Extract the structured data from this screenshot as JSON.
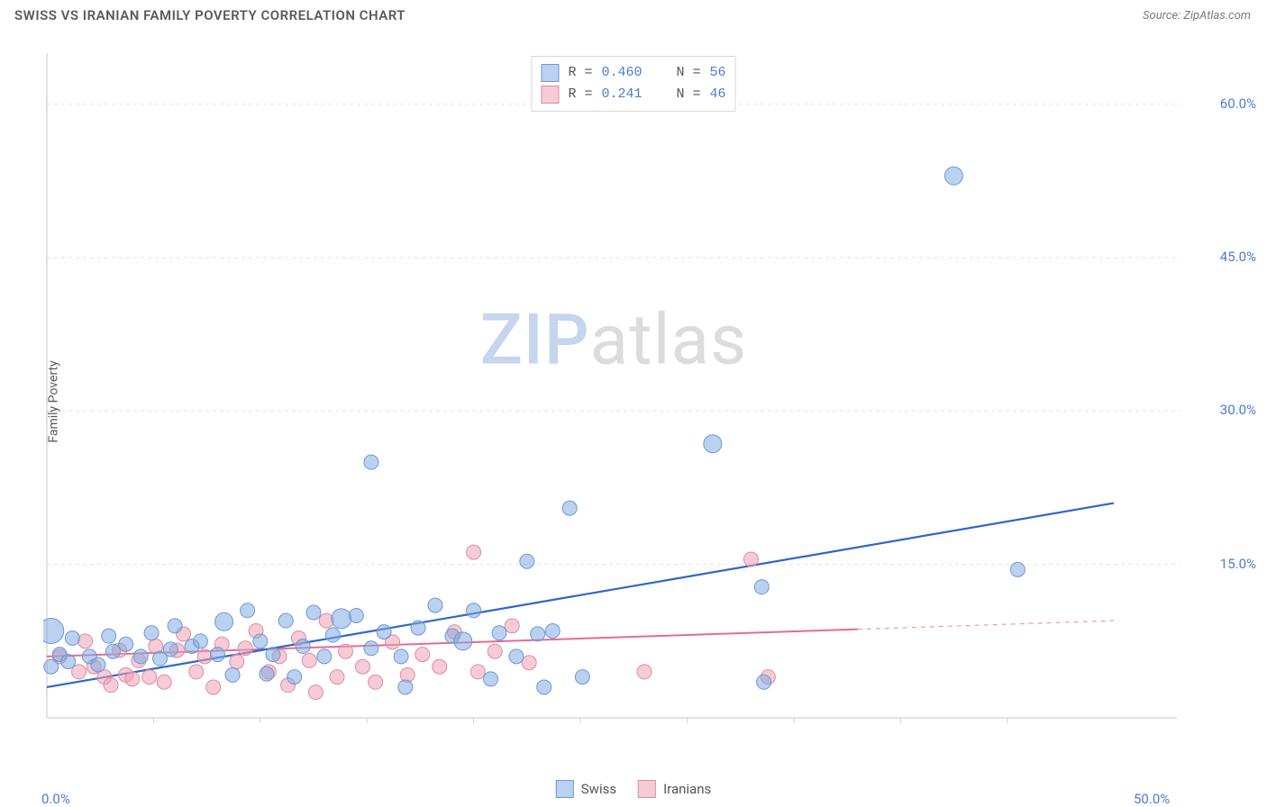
{
  "header": {
    "title": "SWISS VS IRANIAN FAMILY POVERTY CORRELATION CHART",
    "source_label": "Source: ZipAtlas.com"
  },
  "watermark": {
    "part1": "ZIP",
    "part2": "atlas"
  },
  "ylabel": "Family Poverty",
  "stat_legend": {
    "rows": [
      {
        "series": "swiss",
        "r_label": "R =",
        "r_value": "0.460",
        "n_label": "N =",
        "n_value": "56"
      },
      {
        "series": "iranians",
        "r_label": "R =",
        "r_value": "0.241",
        "n_label": "N =",
        "n_value": "46"
      }
    ]
  },
  "bottom_legend": {
    "items": [
      {
        "series": "swiss",
        "label": "Swiss"
      },
      {
        "series": "iranians",
        "label": "Iranians"
      }
    ]
  },
  "chart": {
    "type": "scatter",
    "background_color": "#ffffff",
    "grid_color": "#e4e4e4",
    "grid_dash": "4,4",
    "axis_color": "#d0d0d0",
    "xlim": [
      0,
      50
    ],
    "ylim": [
      0,
      65
    ],
    "x_ticks": [
      {
        "value": 0,
        "label": "0.0%"
      },
      {
        "value": 50,
        "label": "50.0%"
      }
    ],
    "y_ticks": [
      {
        "value": 15,
        "label": "15.0%"
      },
      {
        "value": 30,
        "label": "30.0%"
      },
      {
        "value": 45,
        "label": "45.0%"
      },
      {
        "value": 60,
        "label": "60.0%"
      }
    ],
    "minor_x_ticks": [
      5,
      10,
      15,
      20,
      25,
      30,
      35,
      40,
      45
    ],
    "series": {
      "swiss": {
        "color_fill": "rgba(132,172,225,0.55)",
        "color_stroke": "#6a9ad6",
        "line_color": "#2d67c9",
        "line_width": 2.2,
        "marker_radius": 8,
        "regression": {
          "x1": 0,
          "y1": 3.0,
          "x2": 50,
          "y2": 21.0,
          "solid_until_x": 50
        }
      },
      "iranians": {
        "color_fill": "rgba(236,160,180,0.55)",
        "color_stroke": "#e28aa2",
        "line_color": "#e76b8f",
        "line_width": 2.0,
        "marker_radius": 8,
        "regression": {
          "x1": 0,
          "y1": 6.0,
          "x2": 50,
          "y2": 9.5,
          "solid_until_x": 38
        }
      }
    },
    "points": {
      "swiss": [
        {
          "x": 0.2,
          "y": 8.5,
          "r": 14
        },
        {
          "x": 0.2,
          "y": 5.0
        },
        {
          "x": 0.6,
          "y": 6.2
        },
        {
          "x": 1.0,
          "y": 5.5
        },
        {
          "x": 1.2,
          "y": 7.8
        },
        {
          "x": 2.0,
          "y": 6.0
        },
        {
          "x": 2.4,
          "y": 5.2
        },
        {
          "x": 2.9,
          "y": 8.0
        },
        {
          "x": 3.1,
          "y": 6.5
        },
        {
          "x": 3.7,
          "y": 7.2
        },
        {
          "x": 4.4,
          "y": 6.0
        },
        {
          "x": 4.9,
          "y": 8.3
        },
        {
          "x": 5.3,
          "y": 5.8
        },
        {
          "x": 5.8,
          "y": 6.7
        },
        {
          "x": 6.0,
          "y": 9.0
        },
        {
          "x": 6.8,
          "y": 7.0
        },
        {
          "x": 7.2,
          "y": 7.5
        },
        {
          "x": 8.0,
          "y": 6.2
        },
        {
          "x": 8.3,
          "y": 9.4,
          "r": 10
        },
        {
          "x": 8.7,
          "y": 4.2
        },
        {
          "x": 9.4,
          "y": 10.5
        },
        {
          "x": 10.0,
          "y": 7.5
        },
        {
          "x": 10.3,
          "y": 4.3
        },
        {
          "x": 10.6,
          "y": 6.2
        },
        {
          "x": 11.2,
          "y": 9.5
        },
        {
          "x": 11.6,
          "y": 4.0
        },
        {
          "x": 12.0,
          "y": 7.0
        },
        {
          "x": 12.5,
          "y": 10.3
        },
        {
          "x": 13.0,
          "y": 6.0
        },
        {
          "x": 13.4,
          "y": 8.1
        },
        {
          "x": 13.8,
          "y": 9.7,
          "r": 11
        },
        {
          "x": 14.5,
          "y": 10.0
        },
        {
          "x": 15.2,
          "y": 25.0
        },
        {
          "x": 15.2,
          "y": 6.8
        },
        {
          "x": 15.8,
          "y": 8.4
        },
        {
          "x": 16.6,
          "y": 6.0
        },
        {
          "x": 16.8,
          "y": 3.0
        },
        {
          "x": 17.4,
          "y": 8.8
        },
        {
          "x": 18.2,
          "y": 11.0
        },
        {
          "x": 19.0,
          "y": 8.0
        },
        {
          "x": 19.5,
          "y": 7.5,
          "r": 10
        },
        {
          "x": 20.0,
          "y": 10.5
        },
        {
          "x": 20.8,
          "y": 3.8
        },
        {
          "x": 21.2,
          "y": 8.3
        },
        {
          "x": 22.0,
          "y": 6.0
        },
        {
          "x": 22.5,
          "y": 15.3
        },
        {
          "x": 23.0,
          "y": 8.2
        },
        {
          "x": 23.3,
          "y": 3.0
        },
        {
          "x": 23.7,
          "y": 8.5
        },
        {
          "x": 24.5,
          "y": 20.5
        },
        {
          "x": 25.1,
          "y": 4.0
        },
        {
          "x": 31.2,
          "y": 26.8,
          "r": 10
        },
        {
          "x": 33.5,
          "y": 12.8
        },
        {
          "x": 33.6,
          "y": 3.5
        },
        {
          "x": 42.5,
          "y": 53.0,
          "r": 10
        },
        {
          "x": 45.5,
          "y": 14.5
        }
      ],
      "iranians": [
        {
          "x": 0.6,
          "y": 6.0
        },
        {
          "x": 1.5,
          "y": 4.5
        },
        {
          "x": 1.8,
          "y": 7.5
        },
        {
          "x": 2.2,
          "y": 5.0
        },
        {
          "x": 2.7,
          "y": 4.0
        },
        {
          "x": 3.0,
          "y": 3.2
        },
        {
          "x": 3.4,
          "y": 6.6
        },
        {
          "x": 3.7,
          "y": 4.2
        },
        {
          "x": 4.0,
          "y": 3.8
        },
        {
          "x": 4.3,
          "y": 5.6
        },
        {
          "x": 4.8,
          "y": 4.0
        },
        {
          "x": 5.1,
          "y": 7.0
        },
        {
          "x": 5.5,
          "y": 3.5
        },
        {
          "x": 6.1,
          "y": 6.6
        },
        {
          "x": 6.4,
          "y": 8.2
        },
        {
          "x": 7.0,
          "y": 4.5
        },
        {
          "x": 7.4,
          "y": 6.0
        },
        {
          "x": 7.8,
          "y": 3.0
        },
        {
          "x": 8.2,
          "y": 7.2
        },
        {
          "x": 8.9,
          "y": 5.5
        },
        {
          "x": 9.3,
          "y": 6.8
        },
        {
          "x": 9.8,
          "y": 8.5
        },
        {
          "x": 10.4,
          "y": 4.5
        },
        {
          "x": 10.9,
          "y": 6.0
        },
        {
          "x": 11.3,
          "y": 3.2
        },
        {
          "x": 11.8,
          "y": 7.8
        },
        {
          "x": 12.3,
          "y": 5.6
        },
        {
          "x": 12.6,
          "y": 2.5
        },
        {
          "x": 13.1,
          "y": 9.5
        },
        {
          "x": 13.6,
          "y": 4.0
        },
        {
          "x": 14.0,
          "y": 6.5
        },
        {
          "x": 14.8,
          "y": 5.0
        },
        {
          "x": 15.4,
          "y": 3.5
        },
        {
          "x": 16.2,
          "y": 7.4
        },
        {
          "x": 16.9,
          "y": 4.2
        },
        {
          "x": 17.6,
          "y": 6.2
        },
        {
          "x": 18.4,
          "y": 5.0
        },
        {
          "x": 19.1,
          "y": 8.4
        },
        {
          "x": 20.0,
          "y": 16.2
        },
        {
          "x": 20.2,
          "y": 4.5
        },
        {
          "x": 21.0,
          "y": 6.5
        },
        {
          "x": 21.8,
          "y": 9.0
        },
        {
          "x": 22.6,
          "y": 5.4
        },
        {
          "x": 28.0,
          "y": 4.5
        },
        {
          "x": 33.0,
          "y": 15.5
        },
        {
          "x": 33.8,
          "y": 4.0
        }
      ]
    }
  }
}
